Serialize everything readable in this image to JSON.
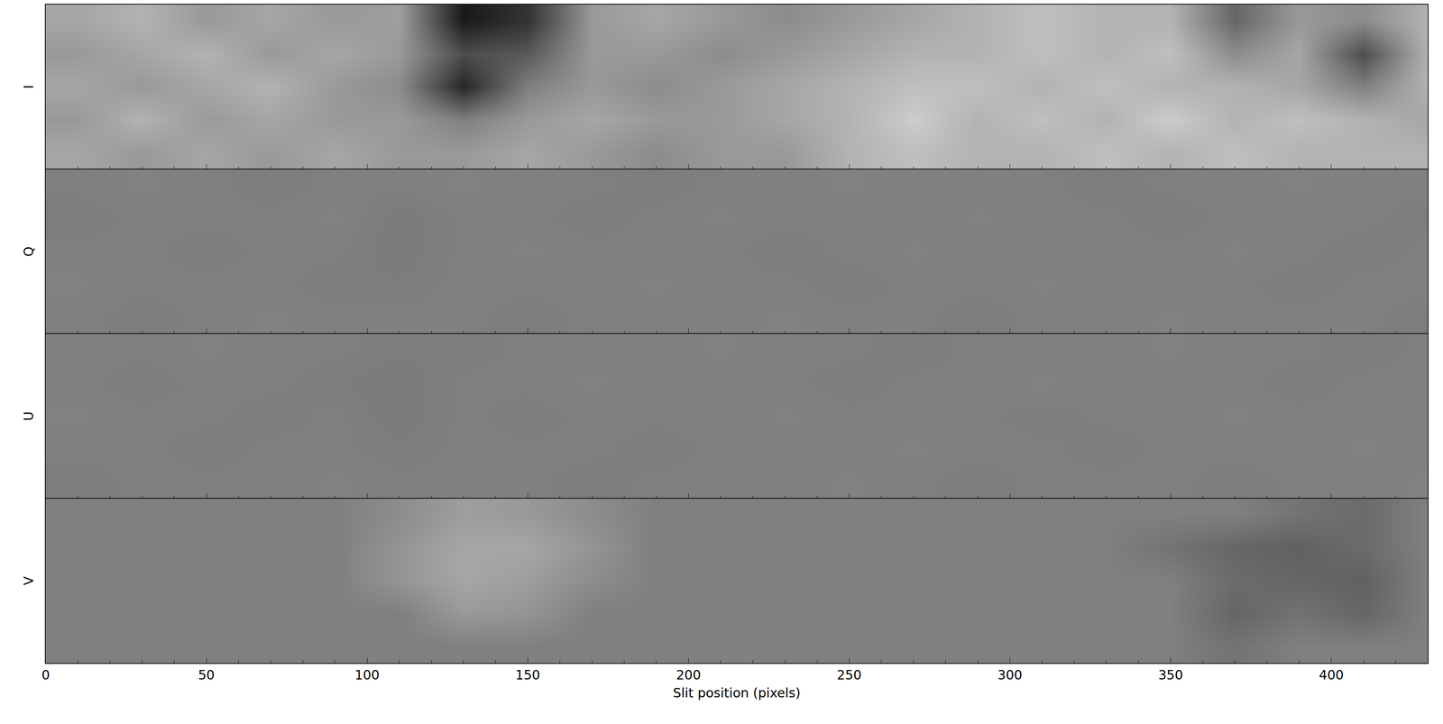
{
  "chart_data": [
    {
      "type": "heatmap",
      "ylabel": "I",
      "xlim": [
        0,
        430
      ],
      "zlim": [
        0,
        1
      ],
      "tick_labels": false,
      "x": [
        10,
        30,
        50,
        70,
        90,
        110,
        130,
        150,
        170,
        190,
        210,
        230,
        250,
        270,
        290,
        310,
        330,
        350,
        370,
        390,
        410,
        430
      ],
      "z": [
        [
          0.65,
          0.7,
          0.6,
          0.65,
          0.6,
          0.62,
          0.1,
          0.2,
          0.6,
          0.65,
          0.6,
          0.55,
          0.6,
          0.65,
          0.7,
          0.75,
          0.7,
          0.7,
          0.4,
          0.6,
          0.55,
          0.7
        ],
        [
          0.6,
          0.65,
          0.7,
          0.6,
          0.65,
          0.6,
          0.3,
          0.35,
          0.6,
          0.6,
          0.55,
          0.6,
          0.65,
          0.7,
          0.7,
          0.75,
          0.7,
          0.75,
          0.55,
          0.65,
          0.3,
          0.7
        ],
        [
          0.65,
          0.6,
          0.65,
          0.7,
          0.6,
          0.55,
          0.15,
          0.5,
          0.6,
          0.55,
          0.6,
          0.65,
          0.7,
          0.75,
          0.75,
          0.7,
          0.75,
          0.7,
          0.7,
          0.65,
          0.5,
          0.7
        ],
        [
          0.6,
          0.7,
          0.6,
          0.65,
          0.6,
          0.6,
          0.5,
          0.6,
          0.65,
          0.6,
          0.6,
          0.65,
          0.7,
          0.8,
          0.7,
          0.75,
          0.7,
          0.8,
          0.7,
          0.75,
          0.7,
          0.65
        ],
        [
          0.65,
          0.6,
          0.65,
          0.6,
          0.65,
          0.6,
          0.6,
          0.65,
          0.6,
          0.55,
          0.6,
          0.6,
          0.7,
          0.75,
          0.7,
          0.7,
          0.75,
          0.7,
          0.75,
          0.7,
          0.7,
          0.7
        ]
      ]
    },
    {
      "type": "heatmap",
      "ylabel": "Q",
      "xlim": [
        0,
        430
      ],
      "zlim": [
        0,
        1
      ],
      "tick_labels": false,
      "x": [
        10,
        30,
        50,
        70,
        90,
        110,
        130,
        150,
        170,
        190,
        210,
        230,
        250,
        270,
        290,
        310,
        330,
        350,
        370,
        390,
        410,
        430
      ],
      "z": [
        [
          0.5,
          0.51,
          0.5,
          0.49,
          0.5,
          0.5,
          0.51,
          0.5,
          0.5,
          0.49,
          0.5,
          0.5,
          0.51,
          0.5,
          0.5,
          0.5,
          0.49,
          0.5,
          0.5,
          0.51,
          0.5,
          0.5
        ],
        [
          0.49,
          0.5,
          0.5,
          0.5,
          0.51,
          0.48,
          0.5,
          0.5,
          0.49,
          0.5,
          0.51,
          0.5,
          0.5,
          0.5,
          0.51,
          0.5,
          0.5,
          0.49,
          0.5,
          0.5,
          0.5,
          0.49
        ],
        [
          0.5,
          0.5,
          0.49,
          0.5,
          0.5,
          0.48,
          0.5,
          0.51,
          0.5,
          0.5,
          0.5,
          0.49,
          0.5,
          0.51,
          0.5,
          0.5,
          0.5,
          0.5,
          0.51,
          0.5,
          0.49,
          0.5
        ],
        [
          0.51,
          0.5,
          0.5,
          0.5,
          0.49,
          0.49,
          0.5,
          0.5,
          0.5,
          0.51,
          0.5,
          0.5,
          0.49,
          0.5,
          0.5,
          0.51,
          0.5,
          0.5,
          0.5,
          0.49,
          0.5,
          0.5
        ],
        [
          0.5,
          0.49,
          0.5,
          0.51,
          0.5,
          0.5,
          0.5,
          0.49,
          0.5,
          0.5,
          0.5,
          0.51,
          0.5,
          0.5,
          0.49,
          0.5,
          0.5,
          0.51,
          0.5,
          0.5,
          0.5,
          0.49
        ]
      ]
    },
    {
      "type": "heatmap",
      "ylabel": "U",
      "xlim": [
        0,
        430
      ],
      "zlim": [
        0,
        1
      ],
      "tick_labels": false,
      "x": [
        10,
        30,
        50,
        70,
        90,
        110,
        130,
        150,
        170,
        190,
        210,
        230,
        250,
        270,
        290,
        310,
        330,
        350,
        370,
        390,
        410,
        430
      ],
      "z": [
        [
          0.5,
          0.5,
          0.51,
          0.5,
          0.5,
          0.49,
          0.49,
          0.5,
          0.5,
          0.5,
          0.51,
          0.5,
          0.5,
          0.49,
          0.5,
          0.5,
          0.5,
          0.51,
          0.5,
          0.5,
          0.49,
          0.5
        ],
        [
          0.5,
          0.49,
          0.5,
          0.5,
          0.49,
          0.48,
          0.5,
          0.5,
          0.51,
          0.5,
          0.5,
          0.5,
          0.49,
          0.5,
          0.5,
          0.51,
          0.5,
          0.5,
          0.5,
          0.49,
          0.5,
          0.5
        ],
        [
          0.51,
          0.5,
          0.5,
          0.49,
          0.5,
          0.48,
          0.5,
          0.49,
          0.5,
          0.5,
          0.5,
          0.51,
          0.5,
          0.5,
          0.5,
          0.49,
          0.5,
          0.5,
          0.51,
          0.5,
          0.5,
          0.5
        ],
        [
          0.5,
          0.5,
          0.49,
          0.5,
          0.5,
          0.49,
          0.5,
          0.5,
          0.5,
          0.49,
          0.5,
          0.5,
          0.5,
          0.51,
          0.5,
          0.5,
          0.49,
          0.5,
          0.5,
          0.5,
          0.51,
          0.5
        ],
        [
          0.49,
          0.5,
          0.5,
          0.5,
          0.51,
          0.5,
          0.5,
          0.5,
          0.49,
          0.5,
          0.5,
          0.5,
          0.51,
          0.5,
          0.49,
          0.5,
          0.5,
          0.5,
          0.49,
          0.5,
          0.5,
          0.51
        ]
      ]
    },
    {
      "type": "heatmap",
      "ylabel": "V",
      "xlim": [
        0,
        430
      ],
      "zlim": [
        0,
        1
      ],
      "tick_labels": "x",
      "xlabel": "Slit position (pixels)",
      "xticks": [
        0,
        50,
        100,
        150,
        200,
        250,
        300,
        350,
        400
      ],
      "x": [
        10,
        30,
        50,
        70,
        90,
        110,
        130,
        150,
        170,
        190,
        210,
        230,
        250,
        270,
        290,
        310,
        330,
        350,
        370,
        390,
        410,
        430
      ],
      "z": [
        [
          0.5,
          0.5,
          0.5,
          0.5,
          0.5,
          0.55,
          0.62,
          0.6,
          0.55,
          0.5,
          0.5,
          0.5,
          0.5,
          0.5,
          0.5,
          0.5,
          0.5,
          0.5,
          0.5,
          0.45,
          0.42,
          0.5
        ],
        [
          0.5,
          0.5,
          0.5,
          0.5,
          0.5,
          0.58,
          0.65,
          0.65,
          0.58,
          0.5,
          0.5,
          0.5,
          0.5,
          0.5,
          0.5,
          0.5,
          0.5,
          0.45,
          0.4,
          0.38,
          0.42,
          0.5
        ],
        [
          0.5,
          0.5,
          0.5,
          0.5,
          0.5,
          0.58,
          0.65,
          0.62,
          0.55,
          0.5,
          0.5,
          0.5,
          0.5,
          0.5,
          0.5,
          0.5,
          0.5,
          0.5,
          0.42,
          0.4,
          0.38,
          0.5
        ],
        [
          0.5,
          0.5,
          0.5,
          0.5,
          0.5,
          0.5,
          0.6,
          0.58,
          0.5,
          0.5,
          0.5,
          0.5,
          0.5,
          0.5,
          0.5,
          0.5,
          0.5,
          0.5,
          0.4,
          0.45,
          0.4,
          0.5
        ],
        [
          0.5,
          0.5,
          0.5,
          0.5,
          0.5,
          0.5,
          0.5,
          0.5,
          0.5,
          0.5,
          0.5,
          0.5,
          0.5,
          0.5,
          0.5,
          0.5,
          0.5,
          0.5,
          0.45,
          0.5,
          0.5,
          0.5
        ]
      ]
    }
  ]
}
